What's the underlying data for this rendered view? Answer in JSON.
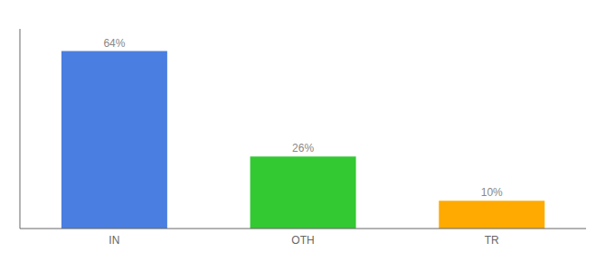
{
  "chart_data": {
    "type": "bar",
    "categories": [
      "IN",
      "OTH",
      "TR"
    ],
    "values": [
      64,
      26,
      10
    ],
    "value_labels": [
      "64%",
      "26%",
      "10%"
    ],
    "colors": [
      "#4a7ee0",
      "#33c933",
      "#ffaa00"
    ],
    "ylim": [
      0,
      72
    ],
    "data_labels": true,
    "tick_labels": "x"
  }
}
